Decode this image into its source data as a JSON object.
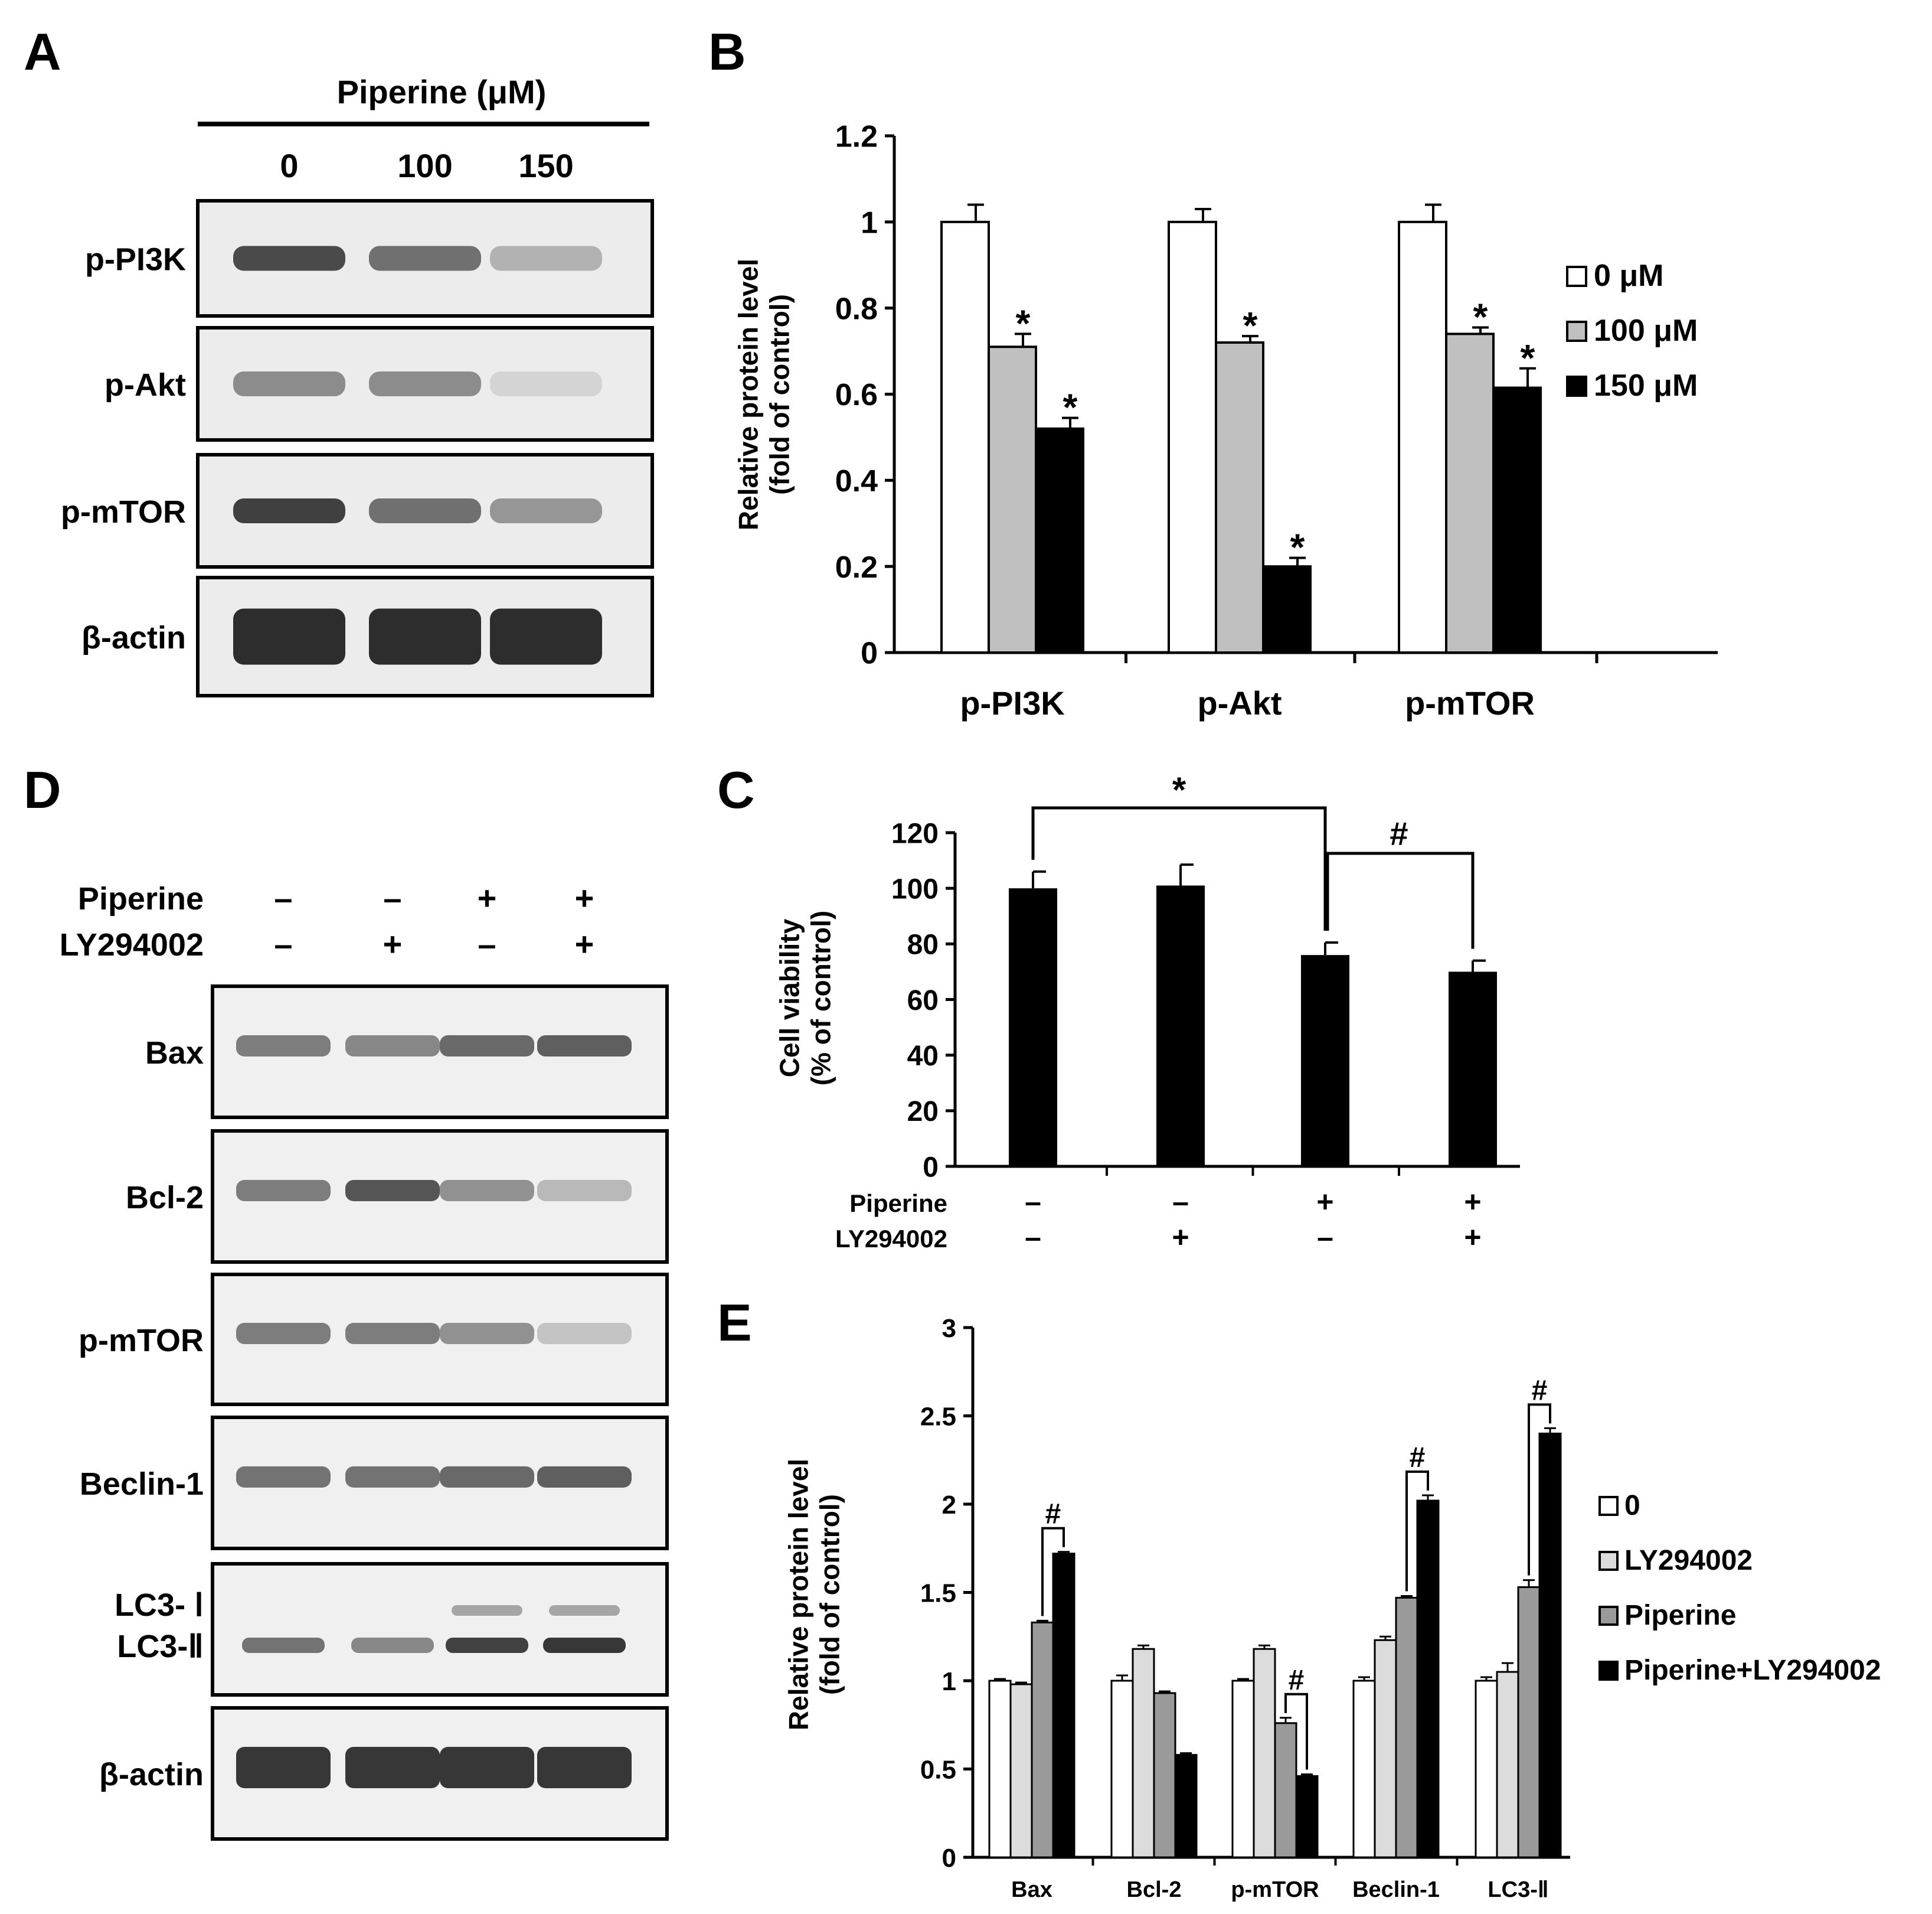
{
  "panels": {
    "A": {
      "letter": "A",
      "treatment_label": "Piperine (μM)",
      "doses": [
        "0",
        "100",
        "150"
      ],
      "rows": [
        {
          "label": "p-PI3K",
          "intensity": [
            0.85,
            0.65,
            0.3
          ]
        },
        {
          "label": "p-Akt",
          "intensity": [
            0.5,
            0.5,
            0.12
          ]
        },
        {
          "label": "p-mTOR",
          "intensity": [
            0.9,
            0.65,
            0.45
          ]
        },
        {
          "label": "β-actin",
          "intensity": [
            1.0,
            1.0,
            1.0
          ]
        }
      ]
    },
    "B": {
      "letter": "B"
    },
    "C": {
      "letter": "C",
      "treatments": [
        {
          "name": "Piperine",
          "signs": [
            "–",
            "–",
            "+",
            "+"
          ]
        },
        {
          "name": "LY294002",
          "signs": [
            "–",
            "+",
            "–",
            "+"
          ]
        }
      ],
      "brackets": [
        "*",
        "#"
      ]
    },
    "D": {
      "letter": "D",
      "treatments": [
        {
          "name": "Piperine",
          "signs": [
            "–",
            "–",
            "+",
            "+"
          ]
        },
        {
          "name": "LY294002",
          "signs": [
            "–",
            "+",
            "–",
            "+"
          ]
        }
      ],
      "rows": [
        {
          "label": "Bax",
          "intensity": [
            0.55,
            0.5,
            0.65,
            0.7
          ]
        },
        {
          "label": "Bcl-2",
          "intensity": [
            0.55,
            0.75,
            0.45,
            0.25
          ]
        },
        {
          "label": "p-mTOR",
          "intensity": [
            0.55,
            0.55,
            0.45,
            0.2
          ]
        },
        {
          "label": "Beclin-1",
          "intensity": [
            0.6,
            0.6,
            0.65,
            0.7
          ]
        },
        {
          "label": "LC3-Ⅰ\nLC3-Ⅱ",
          "label1": "LC3- Ⅰ",
          "label2": "LC3-Ⅱ",
          "intensity": [
            0.6,
            0.5,
            0.85,
            0.9
          ],
          "upper": [
            0,
            0,
            0.35,
            0.35
          ]
        },
        {
          "label": "β-actin",
          "intensity": [
            0.9,
            0.9,
            0.9,
            0.9
          ]
        }
      ]
    },
    "E": {
      "letter": "E"
    }
  },
  "chart_data": [
    {
      "id": "B",
      "type": "bar",
      "ylabel": [
        "Relative protein level",
        "(fold of control)"
      ],
      "ylim": [
        0,
        1.2
      ],
      "yticks": [
        "0",
        "0.2",
        "0.4",
        "0.6",
        "0.8",
        "1",
        "1.2"
      ],
      "categories": [
        "p-PI3K",
        "p-Akt",
        "p-mTOR"
      ],
      "series": [
        {
          "name": "0 μM",
          "color": "#ffffff",
          "values": [
            1.0,
            1.0,
            1.0
          ],
          "errors": [
            0.04,
            0.03,
            0.04
          ],
          "marks": [
            "",
            "",
            ""
          ]
        },
        {
          "name": "100 μM",
          "color": "#c0c0c0",
          "values": [
            0.71,
            0.72,
            0.74
          ],
          "errors": [
            0.03,
            0.015,
            0.015
          ],
          "marks": [
            "*",
            "*",
            "*"
          ]
        },
        {
          "name": "150 μM",
          "color": "#000000",
          "values": [
            0.52,
            0.2,
            0.615
          ],
          "errors": [
            0.025,
            0.02,
            0.045
          ],
          "marks": [
            "*",
            "*",
            "*"
          ]
        }
      ],
      "legend": "right"
    },
    {
      "id": "C",
      "type": "bar",
      "ylabel": [
        "Cell viability",
        "(% of control)"
      ],
      "ylim": [
        0,
        120
      ],
      "yticks": [
        "0",
        "20",
        "40",
        "60",
        "80",
        "100",
        "120"
      ],
      "values": [
        100,
        101,
        76,
        70
      ],
      "errors": [
        6,
        7.5,
        4.5,
        4
      ],
      "color": "#000000"
    },
    {
      "id": "E",
      "type": "bar",
      "ylabel": [
        "Relative protein level",
        "(fold of control)"
      ],
      "ylim": [
        0,
        3
      ],
      "yticks": [
        "0",
        "0.5",
        "1",
        "1.5",
        "2",
        "2.5",
        "3"
      ],
      "categories": [
        "Bax",
        "Bcl-2",
        "p-mTOR",
        "Beclin-1",
        "LC3-Ⅱ"
      ],
      "series": [
        {
          "name": "0",
          "color": "#ffffff",
          "values": [
            1.0,
            1.0,
            1.0,
            1.0,
            1.0
          ],
          "errors": [
            0.01,
            0.03,
            0.01,
            0.02,
            0.02
          ]
        },
        {
          "name": "LY294002",
          "color": "#dcdcdc",
          "values": [
            0.98,
            1.18,
            1.18,
            1.23,
            1.05
          ],
          "errors": [
            0.01,
            0.02,
            0.02,
            0.02,
            0.05
          ]
        },
        {
          "name": "Piperine",
          "color": "#9a9a9a",
          "values": [
            1.33,
            0.93,
            0.76,
            1.47,
            1.53
          ],
          "errors": [
            0.01,
            0.01,
            0.03,
            0.01,
            0.04
          ]
        },
        {
          "name": "Piperine+LY294002",
          "color": "#000000",
          "values": [
            1.72,
            0.58,
            0.46,
            2.02,
            2.4
          ],
          "errors": [
            0.01,
            0.01,
            0.01,
            0.03,
            0.03
          ]
        }
      ],
      "brackets": [
        "#",
        "",
        "#",
        "#",
        "#"
      ],
      "legend": "right"
    }
  ]
}
